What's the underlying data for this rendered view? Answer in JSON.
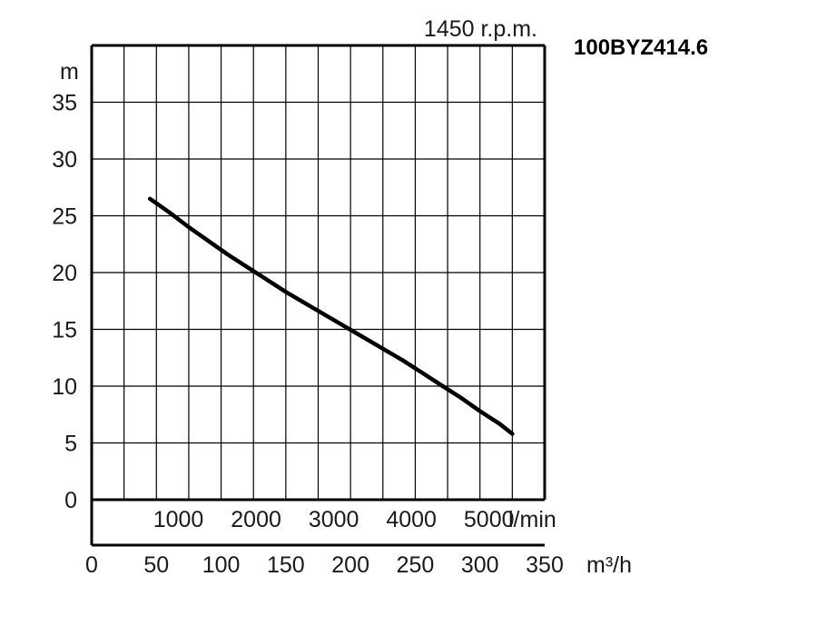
{
  "chart_data": {
    "type": "line",
    "title": "100BYZ414.6",
    "subtitle": "1450 r.p.m.",
    "ylabel": "m",
    "xlabel_flow_m3h": "m³/h",
    "xlabel_flow_lmin": "l/min",
    "ylim": [
      0,
      40
    ],
    "xlim": [
      0,
      350
    ],
    "y_ticks": [
      "0",
      "5",
      "10",
      "15",
      "20",
      "25",
      "30",
      "35"
    ],
    "x_ticks_m3h": [
      "0",
      "50",
      "100",
      "150",
      "200",
      "250",
      "300",
      "350"
    ],
    "x_ticks_lmin": [
      "1000",
      "2000",
      "3000",
      "4000",
      "5000"
    ],
    "grid": true,
    "series": [
      {
        "x": [
          45,
          60,
          75,
          90,
          105,
          120,
          135,
          150,
          165,
          180,
          195,
          210,
          225,
          240,
          255,
          270,
          285,
          300,
          315,
          325
        ],
        "y": [
          26.5,
          25.3,
          24.0,
          22.8,
          21.6,
          20.5,
          19.4,
          18.3,
          17.3,
          16.3,
          15.3,
          14.3,
          13.3,
          12.3,
          11.2,
          10.1,
          9.0,
          7.8,
          6.7,
          5.8
        ]
      }
    ]
  }
}
